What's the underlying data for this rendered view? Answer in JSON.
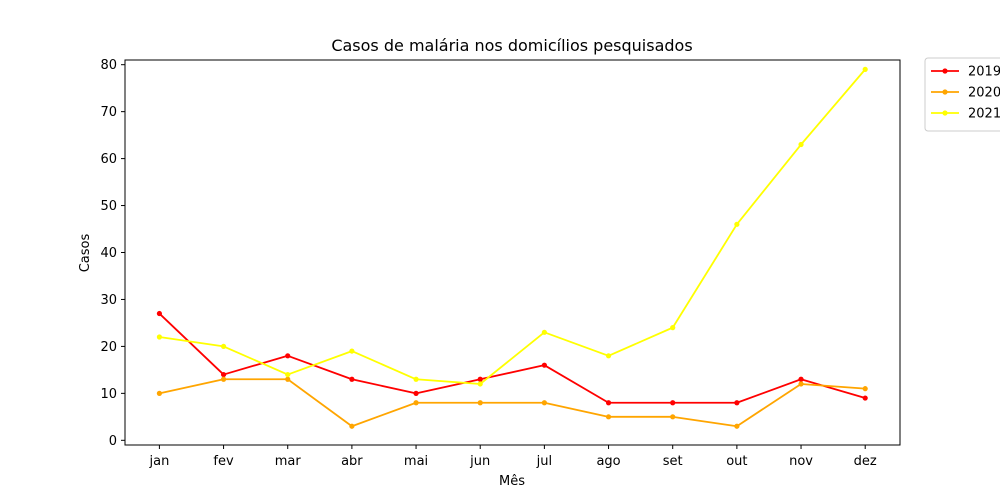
{
  "chart_data": {
    "type": "line",
    "title": "Casos de malária nos domicílios pesquisados",
    "xlabel": "Mês",
    "ylabel": "Casos",
    "categories": [
      "jan",
      "fev",
      "mar",
      "abr",
      "mai",
      "jun",
      "jul",
      "ago",
      "set",
      "out",
      "nov",
      "dez"
    ],
    "ylim": [
      -1,
      81
    ],
    "yticks": [
      0,
      10,
      20,
      30,
      40,
      50,
      60,
      70,
      80
    ],
    "grid": false,
    "legend_position": "outside-top-right",
    "series": [
      {
        "name": "2019",
        "color": "#ff0000",
        "values": [
          27,
          14,
          18,
          13,
          10,
          13,
          16,
          8,
          8,
          8,
          13,
          9
        ]
      },
      {
        "name": "2020",
        "color": "#ffa500",
        "values": [
          10,
          13,
          13,
          3,
          8,
          8,
          8,
          5,
          5,
          3,
          12,
          11
        ]
      },
      {
        "name": "2021",
        "color": "#ffff00",
        "values": [
          22,
          20,
          14,
          19,
          13,
          12,
          23,
          18,
          24,
          46,
          63,
          79
        ]
      }
    ]
  }
}
